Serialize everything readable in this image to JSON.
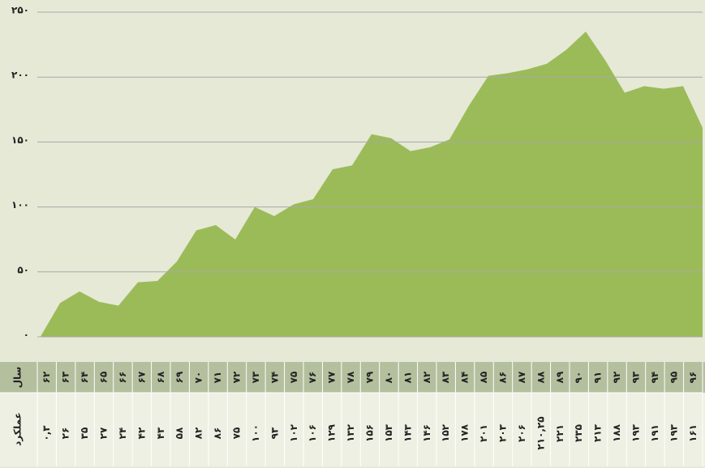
{
  "chart_data": {
    "type": "area",
    "categories": [
      "۶۲",
      "۶۳",
      "۶۴",
      "۶۵",
      "۶۶",
      "۶۷",
      "۶۸",
      "۶۹",
      "۷۰",
      "۷۱",
      "۷۲",
      "۷۳",
      "۷۴",
      "۷۵",
      "۷۶",
      "۷۷",
      "۷۸",
      "۷۹",
      "۸۰",
      "۸۱",
      "۸۲",
      "۸۳",
      "۸۴",
      "۸۵",
      "۸۶",
      "۸۷",
      "۸۸",
      "۸۹",
      "۹۰",
      "۹۱",
      "۹۲",
      "۹۳",
      "۹۴",
      "۹۵",
      "۹۶"
    ],
    "values": [
      0.3,
      26,
      35,
      27,
      24,
      42,
      43,
      58,
      82,
      86,
      75,
      100,
      93,
      102,
      106,
      129,
      132,
      156,
      153,
      143,
      146,
      152,
      178,
      201,
      203,
      206,
      210.25,
      221,
      235,
      213,
      188,
      193,
      191,
      193,
      161
    ],
    "value_labels": [
      "۰,۳",
      "۲۶",
      "۳۵",
      "۲۷",
      "۲۴",
      "۴۲",
      "۴۳",
      "۵۸",
      "۸۲",
      "۸۶",
      "۷۵",
      "۱۰۰",
      "۹۳",
      "۱۰۲",
      "۱۰۶",
      "۱۲۹",
      "۱۳۲",
      "۱۵۶",
      "۱۵۳",
      "۱۴۳",
      "۱۴۶",
      "۱۵۲",
      "۱۷۸",
      "۲۰۱",
      "۲۰۳",
      "۲۰۶",
      "۲۱۰,۲۵",
      "۲۲۱",
      "۲۳۵",
      "۲۱۳",
      "۱۸۸",
      "۱۹۳",
      "۱۹۱",
      "۱۹۳",
      "۱۶۱"
    ],
    "color": "#9bbb59",
    "ylim": [
      0,
      250
    ],
    "yticks": [
      {
        "value": 0,
        "label": "۰"
      },
      {
        "value": 50,
        "label": "۵۰"
      },
      {
        "value": 100,
        "label": "۱۰۰"
      },
      {
        "value": 150,
        "label": "۱۵۰"
      },
      {
        "value": 200,
        "label": "۲۰۰"
      },
      {
        "value": 250,
        "label": "۲۵۰"
      }
    ],
    "grid": true,
    "table_row_labels": [
      "سال",
      "عملکرد"
    ]
  }
}
